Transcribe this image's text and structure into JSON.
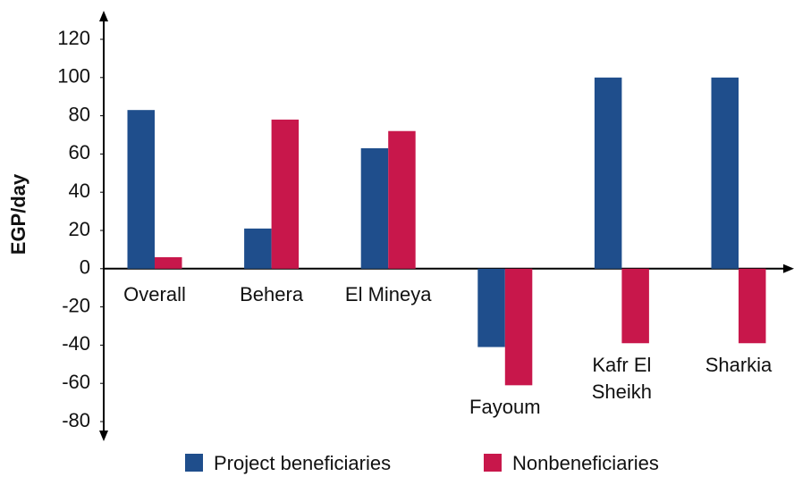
{
  "chart_data": {
    "type": "bar",
    "y_label": "EGP/day",
    "categories": [
      "Overall",
      "Behera",
      "El Mineya",
      "Fayoum",
      "Kafr El Sheikh",
      "Sharkia"
    ],
    "series": [
      {
        "name": "Project beneficiaries",
        "color": "#1f4e8c",
        "values": [
          83,
          21,
          63,
          -41,
          100,
          100
        ]
      },
      {
        "name": "Nonbeneficiaries",
        "color": "#c8174b",
        "values": [
          6,
          78,
          72,
          -61,
          -39,
          -39
        ]
      }
    ],
    "ylim": [
      -80,
      120
    ],
    "yticks": [
      -80,
      -60,
      -40,
      -20,
      0,
      20,
      40,
      60,
      80,
      100,
      120
    ],
    "grid": false
  }
}
